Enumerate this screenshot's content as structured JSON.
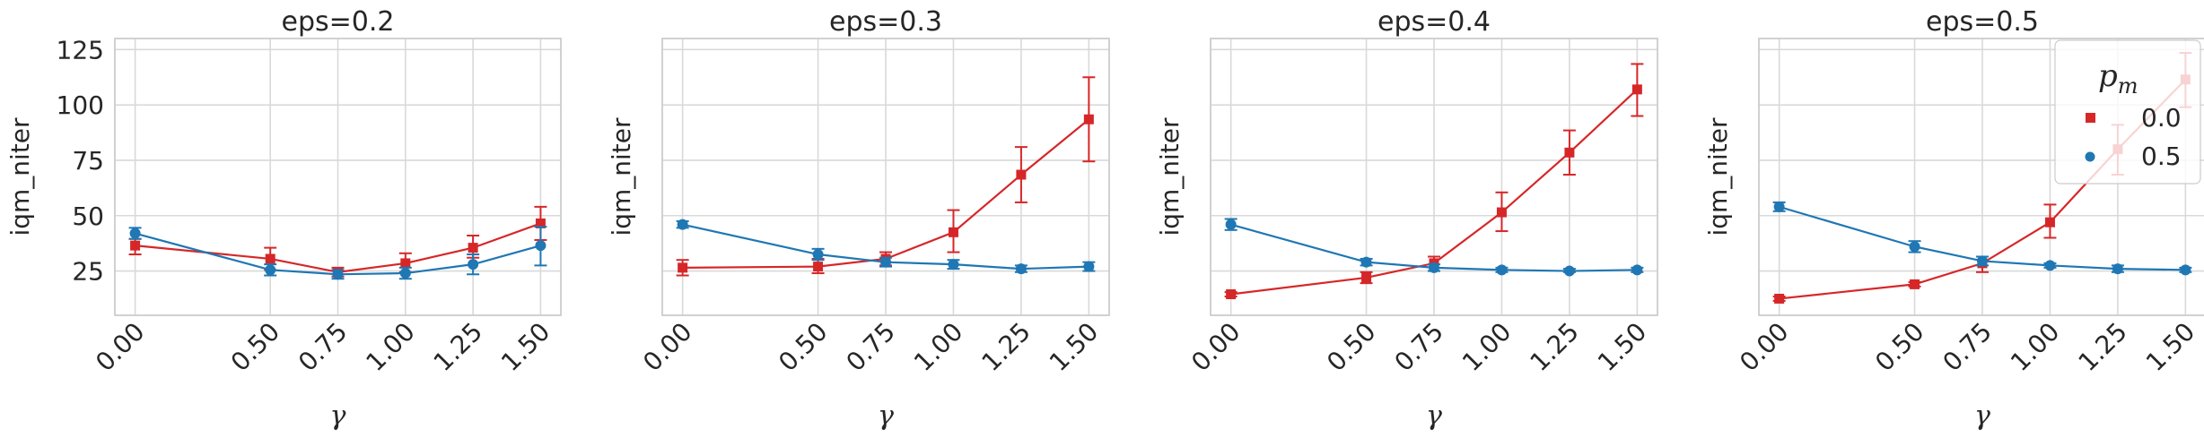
{
  "colors": {
    "series_0": "#d62728",
    "series_1": "#1f77b4",
    "grid": "#d9d9d9",
    "frame": "#cccccc"
  },
  "legend": {
    "title": "p",
    "title_subscript": "m",
    "placement": "upper-right",
    "entries": [
      "0.0",
      "0.5"
    ]
  },
  "chart_data": [
    {
      "type": "line",
      "title": "eps=0.2",
      "xlabel": "γ",
      "ylabel": "iqm_niter",
      "xlim": [
        -0.075,
        1.575
      ],
      "ylim": [
        5,
        130
      ],
      "x": [
        0.0,
        0.5,
        0.75,
        1.0,
        1.25,
        1.5
      ],
      "xtick_labels": [
        "0.00",
        "0.50",
        "0.75",
        "1.00",
        "1.25",
        "1.50"
      ],
      "yticks": [
        25,
        50,
        75,
        100,
        125
      ],
      "ytick_labels": [
        "25",
        "50",
        "75",
        "100",
        "125"
      ],
      "grid": true,
      "series": [
        {
          "name": "0.0",
          "marker": "square",
          "values": [
            36.5,
            30.5,
            24.5,
            28.5,
            35.5,
            46.5
          ],
          "err_low": [
            32.5,
            25.5,
            22.5,
            24.5,
            31.0,
            39.0
          ],
          "err_high": [
            39.5,
            35.5,
            26.5,
            33.0,
            41.0,
            54.0
          ]
        },
        {
          "name": "0.5",
          "marker": "circle",
          "values": [
            42.0,
            25.5,
            23.5,
            24.0,
            28.0,
            36.5
          ],
          "err_low": [
            39.5,
            23.0,
            21.5,
            21.5,
            23.5,
            27.5
          ],
          "err_high": [
            44.5,
            28.0,
            25.5,
            26.5,
            32.5,
            45.0
          ]
        }
      ]
    },
    {
      "type": "line",
      "title": "eps=0.3",
      "xlabel": "γ",
      "ylabel": "iqm_niter",
      "xlim": [
        -0.075,
        1.575
      ],
      "ylim": [
        5,
        130
      ],
      "x": [
        0.0,
        0.5,
        0.75,
        1.0,
        1.25,
        1.5
      ],
      "xtick_labels": [
        "0.00",
        "0.50",
        "0.75",
        "1.00",
        "1.25",
        "1.50"
      ],
      "grid": true,
      "series": [
        {
          "name": "0.0",
          "marker": "square",
          "values": [
            26.5,
            27.0,
            30.5,
            42.5,
            68.5,
            93.5
          ],
          "err_low": [
            23.0,
            24.0,
            27.5,
            33.5,
            56.0,
            74.5
          ],
          "err_high": [
            30.0,
            30.5,
            33.5,
            52.5,
            81.0,
            112.5
          ]
        },
        {
          "name": "0.5",
          "marker": "circle",
          "values": [
            46.0,
            32.5,
            29.0,
            28.0,
            26.0,
            27.0
          ],
          "err_low": [
            44.5,
            30.0,
            27.0,
            26.0,
            24.5,
            25.0
          ],
          "err_high": [
            47.5,
            35.0,
            31.0,
            30.0,
            27.5,
            29.0
          ]
        }
      ]
    },
    {
      "type": "line",
      "title": "eps=0.4",
      "xlabel": "γ",
      "ylabel": "iqm_niter",
      "xlim": [
        -0.075,
        1.575
      ],
      "ylim": [
        5,
        130
      ],
      "x": [
        0.0,
        0.5,
        0.75,
        1.0,
        1.25,
        1.5
      ],
      "xtick_labels": [
        "0.00",
        "0.50",
        "0.75",
        "1.00",
        "1.25",
        "1.50"
      ],
      "grid": true,
      "series": [
        {
          "name": "0.0",
          "marker": "square",
          "values": [
            14.5,
            22.0,
            28.5,
            51.5,
            78.5,
            107.0
          ],
          "err_low": [
            13.5,
            19.5,
            25.0,
            43.0,
            68.5,
            95.0
          ],
          "err_high": [
            15.5,
            24.5,
            31.5,
            60.5,
            88.5,
            118.5
          ]
        },
        {
          "name": "0.5",
          "marker": "circle",
          "values": [
            46.0,
            29.0,
            26.5,
            25.5,
            25.0,
            25.5
          ],
          "err_low": [
            43.5,
            27.5,
            25.0,
            24.5,
            24.5,
            24.5
          ],
          "err_high": [
            48.5,
            30.5,
            28.0,
            26.5,
            26.0,
            26.5
          ]
        }
      ]
    },
    {
      "type": "line",
      "title": "eps=0.5",
      "xlabel": "γ",
      "ylabel": "iqm_niter",
      "xlim": [
        -0.075,
        1.575
      ],
      "ylim": [
        5,
        130
      ],
      "x": [
        0.0,
        0.5,
        0.75,
        1.0,
        1.25,
        1.5
      ],
      "xtick_labels": [
        "0.00",
        "0.50",
        "0.75",
        "1.00",
        "1.25",
        "1.50"
      ],
      "grid": true,
      "series": [
        {
          "name": "0.0",
          "marker": "square",
          "values": [
            12.5,
            19.0,
            28.5,
            47.0,
            80.0,
            111.5
          ],
          "err_low": [
            11.5,
            18.0,
            24.5,
            40.0,
            68.5,
            99.0
          ],
          "err_high": [
            13.5,
            20.0,
            31.5,
            55.0,
            91.0,
            123.5
          ]
        },
        {
          "name": "0.5",
          "marker": "circle",
          "values": [
            54.0,
            36.0,
            29.5,
            27.5,
            26.0,
            25.5
          ],
          "err_low": [
            52.0,
            33.5,
            27.5,
            26.5,
            24.5,
            24.5
          ],
          "err_high": [
            56.0,
            38.5,
            31.5,
            28.5,
            27.5,
            26.5
          ]
        }
      ]
    }
  ]
}
